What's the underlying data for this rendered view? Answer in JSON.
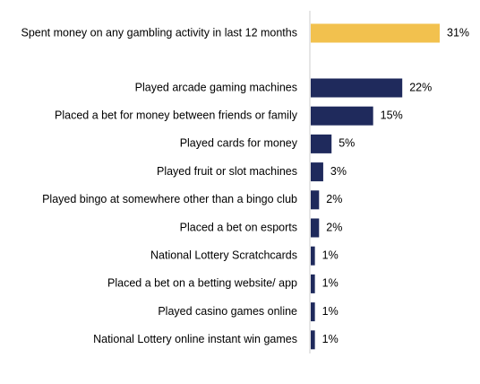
{
  "chart_data": {
    "type": "bar",
    "orientation": "horizontal",
    "title": "",
    "xlabel": "",
    "ylabel": "",
    "xlim": [
      0,
      31
    ],
    "grid": false,
    "legend": "none",
    "value_suffix": "%",
    "colors": {
      "highlight": "#f2c14e",
      "bar": "#1f2a5c",
      "axis": "#cccccc",
      "label": "#000000"
    },
    "bars": [
      {
        "category": "Spent money on any gambling activity in last 12 months",
        "value": 31,
        "label": "31%",
        "highlight": true
      },
      {
        "category": "Played arcade gaming machines",
        "value": 22,
        "label": "22%",
        "highlight": false
      },
      {
        "category": "Placed a bet for money between friends or family",
        "value": 15,
        "label": "15%",
        "highlight": false
      },
      {
        "category": "Played cards for money",
        "value": 5,
        "label": "5%",
        "highlight": false
      },
      {
        "category": "Played fruit or slot machines",
        "value": 3,
        "label": "3%",
        "highlight": false
      },
      {
        "category": "Played bingo at somewhere other than a bingo club",
        "value": 2,
        "label": "2%",
        "highlight": false
      },
      {
        "category": "Placed a bet on esports",
        "value": 2,
        "label": "2%",
        "highlight": false
      },
      {
        "category": "National Lottery Scratchcards",
        "value": 1,
        "label": "1%",
        "highlight": false
      },
      {
        "category": "Placed a bet on a betting website/ app",
        "value": 1,
        "label": "1%",
        "highlight": false
      },
      {
        "category": "Played casino games online",
        "value": 1,
        "label": "1%",
        "highlight": false
      },
      {
        "category": "National Lottery online instant win games",
        "value": 1,
        "label": "1%",
        "highlight": false
      }
    ]
  }
}
